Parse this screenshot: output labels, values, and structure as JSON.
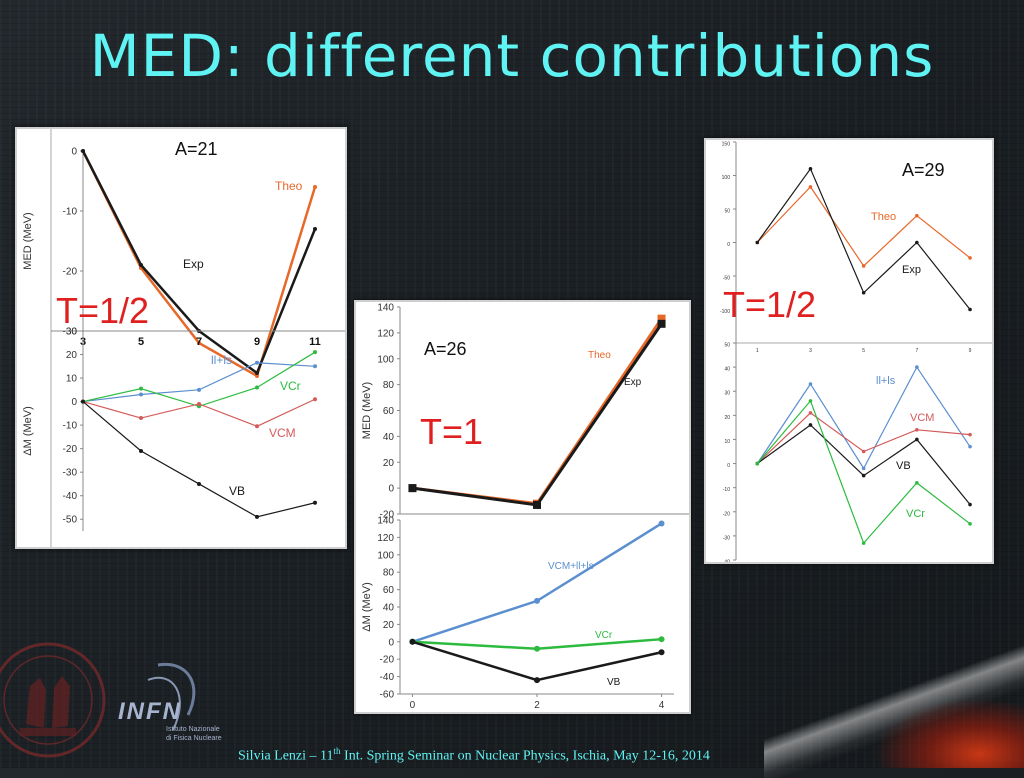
{
  "slide": {
    "title": "MED: different contributions",
    "footer_name": "Silvia Lenzi –  11",
    "footer_sup": "th",
    "footer_rest": "  Int. Spring Seminar on Nuclear Physics, Ischia, May 12-16, 2014",
    "logo_text": "INFN",
    "logo_sub1": "Istituto Nazionale",
    "logo_sub2": "di Fisica Nucleare",
    "colors": {
      "title": "#5ff3f3",
      "theo": "#e8682a",
      "exp": "#1a1a1a",
      "vcm": "#d55a5a",
      "vcr": "#2dbb3f",
      "llls": "#5b8fd0",
      "vb": "#1a1a1a",
      "red_label": "#e02020"
    }
  },
  "chart_data": [
    {
      "type": "line",
      "title": "A=21",
      "label": "T=1/2",
      "ylabel": "MED (MeV)",
      "x": [
        3,
        5,
        7,
        9,
        11
      ],
      "ylim": [
        -30,
        0
      ],
      "yticks": [
        0,
        -10,
        -20,
        -30
      ],
      "ytick_labels": [
        "0",
        "-10",
        "-20",
        "-30"
      ],
      "series": [
        {
          "name": "Theo",
          "values": [
            0,
            -19.5,
            -32,
            -37.5,
            -6
          ]
        },
        {
          "name": "Exp",
          "values": [
            0,
            -19,
            -30,
            -37,
            -13
          ]
        }
      ]
    },
    {
      "type": "line",
      "ylabel": "ΔM (MeV)",
      "x": [
        3,
        5,
        7,
        9,
        11
      ],
      "xtick_labels": [
        "3",
        "5",
        "7",
        "9",
        "11"
      ],
      "ylim": [
        -55,
        30
      ],
      "yticks": [
        30,
        20,
        10,
        0,
        -10,
        -20,
        -30,
        -40,
        -50
      ],
      "ytick_labels": [
        "30",
        "20",
        "10",
        "0",
        "-10",
        "-20",
        "-30",
        "-40",
        "-50"
      ],
      "series": [
        {
          "name": "ll+ls",
          "values": [
            0,
            3,
            5,
            16.5,
            15
          ]
        },
        {
          "name": "VCr",
          "values": [
            0,
            5.5,
            -2,
            6,
            21
          ]
        },
        {
          "name": "VCM",
          "values": [
            0,
            -7,
            -1,
            -10.5,
            1
          ]
        },
        {
          "name": "VB",
          "values": [
            0,
            -21,
            -35,
            -49,
            -43
          ]
        }
      ]
    },
    {
      "type": "line",
      "title": "A=26",
      "label": "T=1",
      "ylabel": "MED (MeV)",
      "x": [
        0,
        2,
        4
      ],
      "ylim": [
        -20,
        140
      ],
      "yticks": [
        140,
        120,
        100,
        80,
        60,
        40,
        20,
        0,
        -20
      ],
      "ytick_labels": [
        "140",
        "120",
        "100",
        "80",
        "60",
        "40",
        "20",
        "0",
        "-20"
      ],
      "series": [
        {
          "name": "Theo",
          "values": [
            0,
            -12,
            131
          ]
        },
        {
          "name": "Exp",
          "values": [
            0,
            -13,
            127
          ]
        }
      ]
    },
    {
      "type": "line",
      "ylabel": "ΔM (MeV)",
      "x": [
        0,
        2,
        4
      ],
      "xtick_labels": [
        "0",
        "2",
        "4"
      ],
      "ylim": [
        -60,
        140
      ],
      "yticks": [
        140,
        120,
        100,
        80,
        60,
        40,
        20,
        0,
        -20,
        -40,
        -60
      ],
      "ytick_labels": [
        "140",
        "120",
        "100",
        "80",
        "60",
        "40",
        "20",
        "0",
        "-20",
        "-40",
        "-60"
      ],
      "series": [
        {
          "name": "VCM+ll+ls",
          "values": [
            0,
            47,
            136
          ]
        },
        {
          "name": "VCr",
          "values": [
            0,
            -8,
            3
          ]
        },
        {
          "name": "VB",
          "values": [
            0,
            -44,
            -12
          ]
        }
      ]
    },
    {
      "type": "line",
      "title": "A=29",
      "label": "T=1/2",
      "x": [
        1,
        3,
        5,
        7,
        9
      ],
      "ylim": [
        -150,
        150
      ],
      "yticks": [
        150,
        100,
        50,
        0,
        -50,
        -100
      ],
      "ytick_labels": [
        "150",
        "100",
        "50",
        "0",
        "-50",
        "-100"
      ],
      "series": [
        {
          "name": "Theo",
          "values": [
            0,
            83,
            -35,
            40,
            -23
          ]
        },
        {
          "name": "Exp",
          "values": [
            0,
            110,
            -75,
            0,
            -100
          ]
        }
      ]
    },
    {
      "type": "line",
      "x": [
        1,
        3,
        5,
        7,
        9
      ],
      "xtick_labels": [
        "1",
        "3",
        "5",
        "7",
        "9"
      ],
      "ylim": [
        -40,
        50
      ],
      "yticks": [
        50,
        40,
        30,
        20,
        10,
        0,
        -10,
        -20,
        -30,
        -40
      ],
      "ytick_labels": [
        "50",
        "40",
        "30",
        "20",
        "10",
        "0",
        "-10",
        "-20",
        "-30",
        "-40"
      ],
      "series": [
        {
          "name": "ll+ls",
          "values": [
            0,
            33,
            -2,
            40,
            7
          ]
        },
        {
          "name": "VCM",
          "values": [
            0,
            21,
            5,
            14,
            12
          ]
        },
        {
          "name": "VB",
          "values": [
            0,
            16,
            -5,
            10,
            -17
          ]
        },
        {
          "name": "VCr",
          "values": [
            0,
            26,
            -33,
            -8,
            -25
          ]
        }
      ]
    }
  ]
}
